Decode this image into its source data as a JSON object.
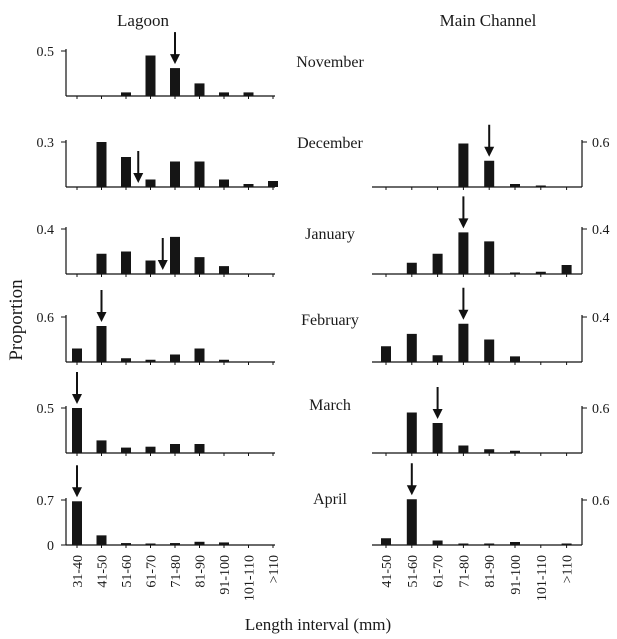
{
  "figure": {
    "left_title": "Lagoon",
    "right_title": "Main Channel",
    "ylabel": "Proportion",
    "xlabel": "Length interval (mm)",
    "months": [
      "November",
      "December",
      "January",
      "February",
      "March",
      "April"
    ]
  },
  "colors": {
    "bars": "#151515",
    "axes": "#111111"
  },
  "chart_data": [
    {
      "type": "bar",
      "panel": "Lagoon",
      "month": "November",
      "categories": [
        "31-40",
        "41-50",
        "51-60",
        "61-70",
        "71-80",
        "81-90",
        "91-100",
        "101-110",
        ">110"
      ],
      "values": [
        0,
        0,
        0.04,
        0.45,
        0.31,
        0.14,
        0.04,
        0.04,
        0
      ],
      "ytick": "0.5",
      "ytick_value": 0.5,
      "ylim": [
        0,
        0.5
      ],
      "arrow_at": 5
    },
    {
      "type": "bar",
      "panel": "Lagoon",
      "month": "December",
      "categories": [
        "31-40",
        "41-50",
        "51-60",
        "61-70",
        "71-80",
        "81-90",
        "91-100",
        "101-110",
        ">110"
      ],
      "values": [
        0,
        0.3,
        0.2,
        0.05,
        0.17,
        0.17,
        0.05,
        0.02,
        0.04
      ],
      "ytick": "0.3",
      "ytick_value": 0.3,
      "ylim": [
        0,
        0.3
      ],
      "arrow_at": 3.5
    },
    {
      "type": "bar",
      "panel": "Lagoon",
      "month": "January",
      "categories": [
        "31-40",
        "41-50",
        "51-60",
        "61-70",
        "71-80",
        "81-90",
        "91-100",
        "101-110",
        ">110"
      ],
      "values": [
        0,
        0.18,
        0.2,
        0.12,
        0.33,
        0.15,
        0.07,
        0,
        0
      ],
      "ytick": "0.4",
      "ytick_value": 0.4,
      "ylim": [
        0,
        0.4
      ],
      "arrow_at": 4.5
    },
    {
      "type": "bar",
      "panel": "Lagoon",
      "month": "February",
      "categories": [
        "31-40",
        "41-50",
        "51-60",
        "61-70",
        "71-80",
        "81-90",
        "91-100",
        "101-110",
        ">110"
      ],
      "values": [
        0.18,
        0.48,
        0.05,
        0.03,
        0.1,
        0.18,
        0.03,
        0,
        0
      ],
      "ytick": "0.6",
      "ytick_value": 0.6,
      "ylim": [
        0,
        0.6
      ],
      "arrow_at": 2
    },
    {
      "type": "bar",
      "panel": "Lagoon",
      "month": "March",
      "categories": [
        "31-40",
        "41-50",
        "51-60",
        "61-70",
        "71-80",
        "81-90",
        "91-100",
        "101-110",
        ">110"
      ],
      "values": [
        0.5,
        0.14,
        0.06,
        0.07,
        0.1,
        0.1,
        0,
        0,
        0
      ],
      "ytick": "0.5",
      "ytick_value": 0.5,
      "ylim": [
        0,
        0.5
      ],
      "arrow_at": 1
    },
    {
      "type": "bar",
      "panel": "Lagoon",
      "month": "April",
      "categories": [
        "31-40",
        "41-50",
        "51-60",
        "61-70",
        "71-80",
        "81-90",
        "91-100",
        "101-110",
        ">110"
      ],
      "values": [
        0.68,
        0.15,
        0.03,
        0.02,
        0.03,
        0.05,
        0.04,
        0,
        0
      ],
      "ytick": "0.7",
      "ytick_value": 0.7,
      "ylim": [
        0,
        0.7
      ],
      "arrow_at": 1
    },
    {
      "type": "bar",
      "panel": "Main Channel",
      "month": "December",
      "categories": [
        "41-50",
        "51-60",
        "61-70",
        "71-80",
        "81-90",
        "91-100",
        "101-110",
        ">110"
      ],
      "values": [
        0,
        0,
        0,
        0.58,
        0.35,
        0.04,
        0.02,
        0
      ],
      "ytick": "0.6",
      "ytick_value": 0.6,
      "ylim": [
        0,
        0.6
      ],
      "arrow_at": 5
    },
    {
      "type": "bar",
      "panel": "Main Channel",
      "month": "January",
      "categories": [
        "41-50",
        "51-60",
        "61-70",
        "71-80",
        "81-90",
        "91-100",
        "101-110",
        ">110"
      ],
      "values": [
        0,
        0.1,
        0.18,
        0.37,
        0.29,
        0.01,
        0.02,
        0.08
      ],
      "ytick": "0.4",
      "ytick_value": 0.4,
      "ylim": [
        0,
        0.4
      ],
      "arrow_at": 4
    },
    {
      "type": "bar",
      "panel": "Main Channel",
      "month": "February",
      "categories": [
        "41-50",
        "51-60",
        "61-70",
        "71-80",
        "81-90",
        "91-100",
        "101-110",
        ">110"
      ],
      "values": [
        0.14,
        0.25,
        0.06,
        0.34,
        0.2,
        0.05,
        0,
        0
      ],
      "ytick": "0.4",
      "ytick_value": 0.4,
      "ylim": [
        0,
        0.4
      ],
      "arrow_at": 4
    },
    {
      "type": "bar",
      "panel": "Main Channel",
      "month": "March",
      "categories": [
        "41-50",
        "51-60",
        "61-70",
        "71-80",
        "81-90",
        "91-100",
        "101-110",
        ">110"
      ],
      "values": [
        0,
        0.54,
        0.4,
        0.1,
        0.05,
        0.03,
        0,
        0
      ],
      "ytick": "0.6",
      "ytick_value": 0.6,
      "ylim": [
        0,
        0.6
      ],
      "arrow_at": 3
    },
    {
      "type": "bar",
      "panel": "Main Channel",
      "month": "April",
      "categories": [
        "41-50",
        "51-60",
        "61-70",
        "71-80",
        "81-90",
        "91-100",
        "101-110",
        ">110"
      ],
      "values": [
        0.09,
        0.61,
        0.06,
        0.01,
        0.01,
        0.04,
        0,
        0.01
      ],
      "ytick": "0.6",
      "ytick_value": 0.6,
      "ylim": [
        0,
        0.6
      ],
      "arrow_at": 2
    }
  ]
}
